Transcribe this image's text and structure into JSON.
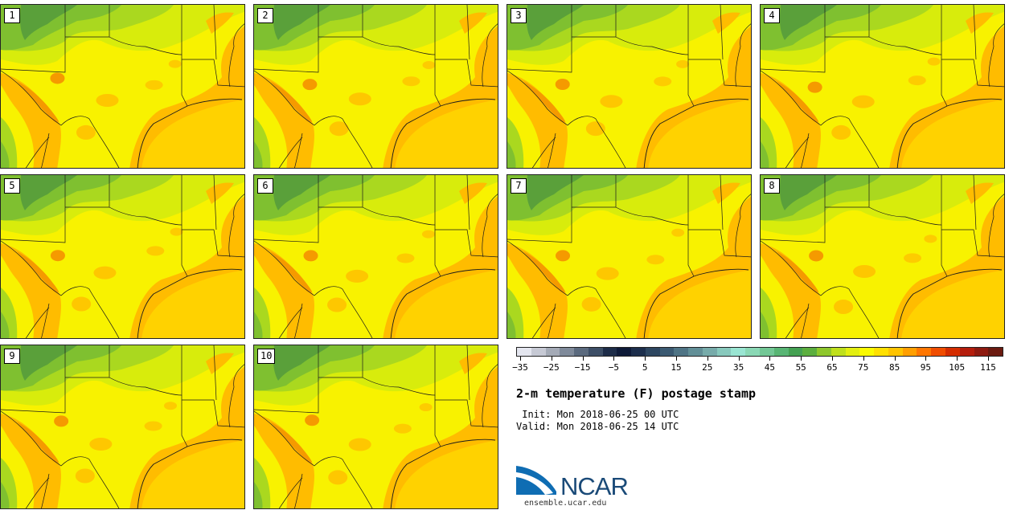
{
  "panels": [
    {
      "label": "1"
    },
    {
      "label": "2"
    },
    {
      "label": "3"
    },
    {
      "label": "4"
    },
    {
      "label": "5"
    },
    {
      "label": "6"
    },
    {
      "label": "7"
    },
    {
      "label": "8"
    },
    {
      "label": "9"
    },
    {
      "label": "10"
    }
  ],
  "colorbar": {
    "colors": [
      "#e4e6ef",
      "#c6c9d4",
      "#a4aab6",
      "#7f8a9a",
      "#5b6a7e",
      "#3d4e66",
      "#1d2c48",
      "#0e1a38",
      "#1c2e4c",
      "#2d4660",
      "#3b5a72",
      "#4f7485",
      "#628f97",
      "#77abaa",
      "#88c9bd",
      "#99e5d2",
      "#8ad8b5",
      "#72c795",
      "#58b574",
      "#44a152",
      "#5bae3e",
      "#8ec72c",
      "#bfe01c",
      "#e3ef10",
      "#fbfb00",
      "#ffe000",
      "#ffc400",
      "#ff9f00",
      "#ff7600",
      "#f04d00",
      "#d42d00",
      "#b41d0c",
      "#8e1a10",
      "#6a1a10"
    ],
    "tick_labels": [
      "−35",
      "−25",
      "−15",
      "−5",
      "5",
      "15",
      "25",
      "35",
      "45",
      "55",
      "65",
      "75",
      "85",
      "95",
      "105",
      "115"
    ],
    "min": -40,
    "max": 120
  },
  "info": {
    "title": "2-m temperature (F) postage stamp",
    "init": " Init: Mon 2018-06-25 00 UTC",
    "valid": "Valid: Mon 2018-06-25 14 UTC"
  },
  "logo": {
    "word": "NCAR",
    "url": "ensemble.ucar.edu",
    "colors": {
      "swoosh": "#0f6db3",
      "text": "#1a4a78"
    }
  },
  "map_colors": {
    "yellow": "#f8f200",
    "gulf": "#ffd200",
    "orange": "#ffbc00",
    "darkorange": "#f59a00",
    "yellowgreen": "#d8ec0c",
    "lightgreen": "#aad81f",
    "green": "#7fc030",
    "darkgreen": "#5aa03a"
  }
}
